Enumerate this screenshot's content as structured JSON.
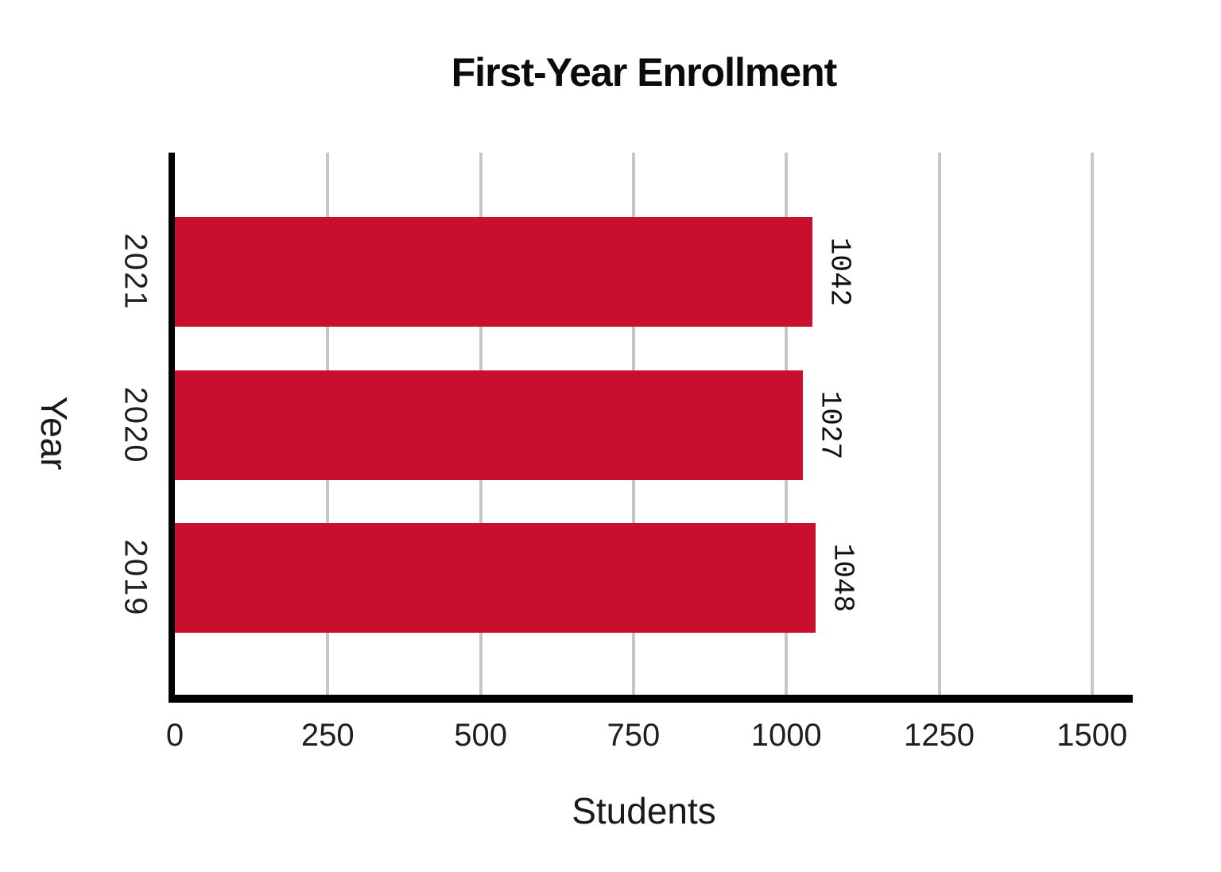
{
  "chart_data": {
    "type": "bar",
    "orientation": "horizontal",
    "title": "First-Year Enrollment",
    "xlabel": "Students",
    "ylabel": "Year",
    "categories": [
      "2021",
      "2020",
      "2019"
    ],
    "values": [
      1042,
      1027,
      1048
    ],
    "value_labels": [
      "1042",
      "1027",
      "1048"
    ],
    "xticks": [
      0,
      250,
      500,
      750,
      1000,
      1250,
      1500
    ],
    "xlim": [
      0,
      1565
    ],
    "grid": "vertical",
    "legend": "none",
    "colors": {
      "bar": "#C8102E",
      "gridline": "#C6C6C6",
      "axis": "#000000",
      "text": "#1A1A1A"
    },
    "rotated_labels_deg": 90
  }
}
